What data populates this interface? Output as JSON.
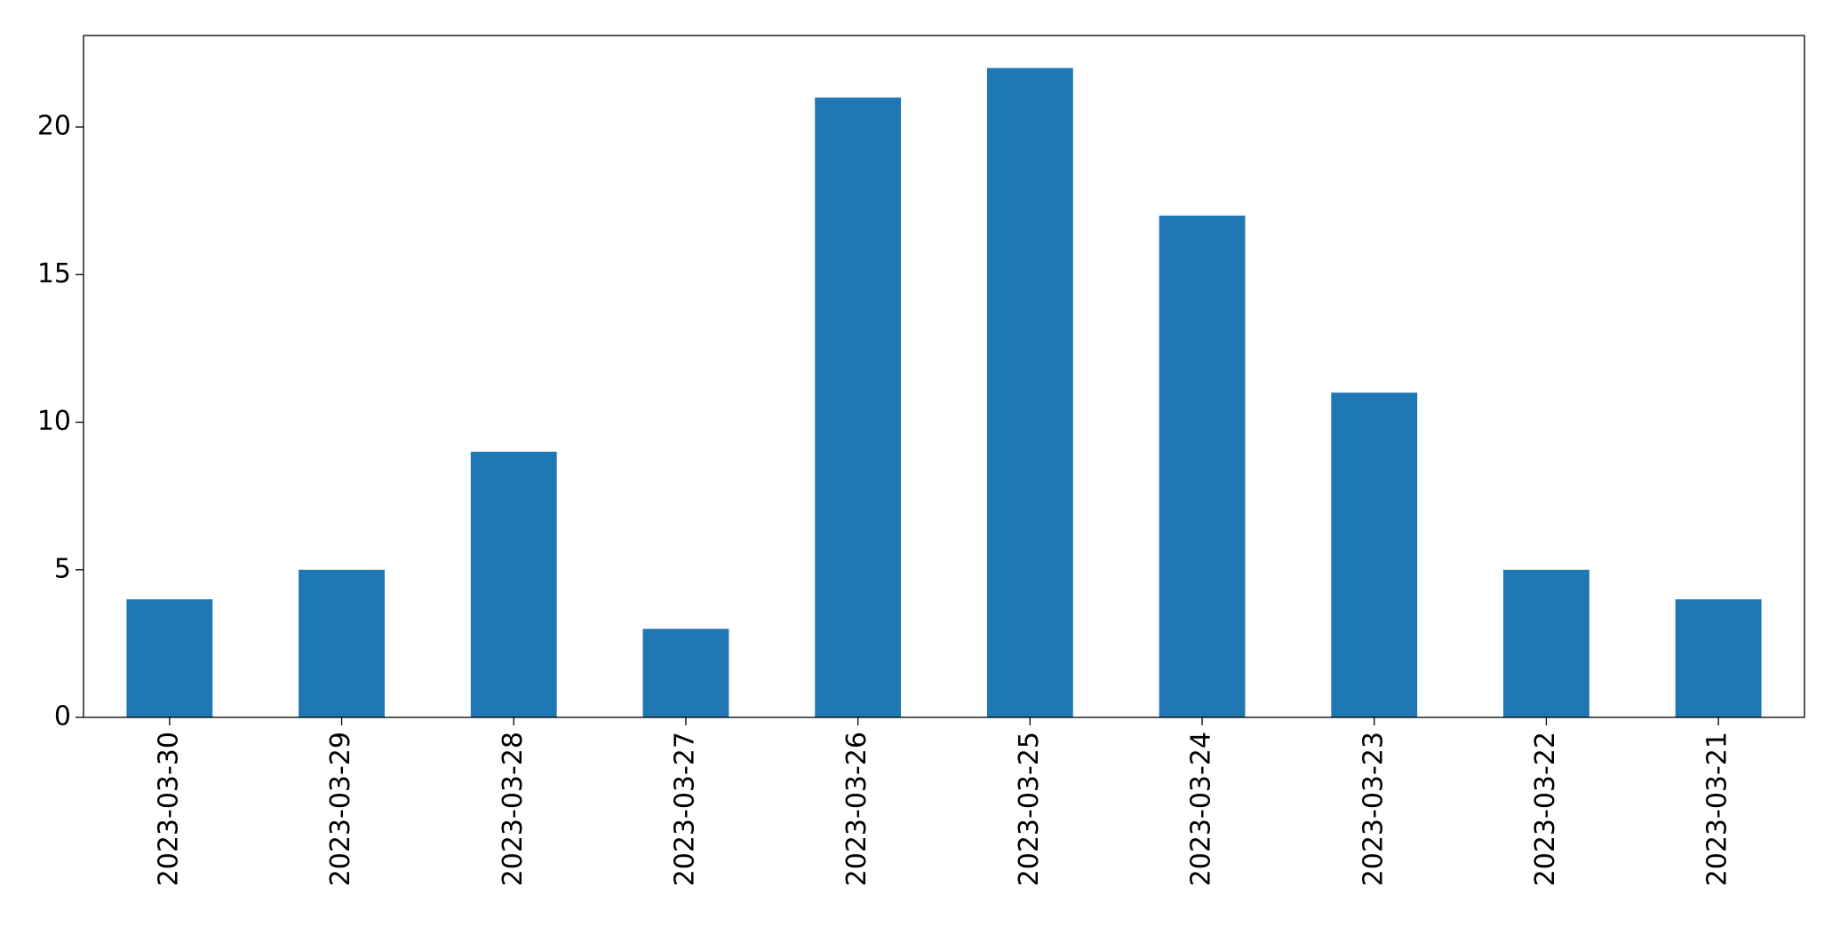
{
  "chart_data": {
    "type": "bar",
    "categories": [
      "2023-03-30",
      "2023-03-29",
      "2023-03-28",
      "2023-03-27",
      "2023-03-26",
      "2023-03-25",
      "2023-03-24",
      "2023-03-23",
      "2023-03-22",
      "2023-03-21"
    ],
    "values": [
      4,
      5,
      9,
      3,
      21,
      22,
      17,
      11,
      5,
      4
    ],
    "color": "#1f77b4",
    "ylim": [
      0,
      23.1
    ],
    "yticks": [
      0,
      5,
      10,
      15,
      20
    ],
    "grid": false
  }
}
